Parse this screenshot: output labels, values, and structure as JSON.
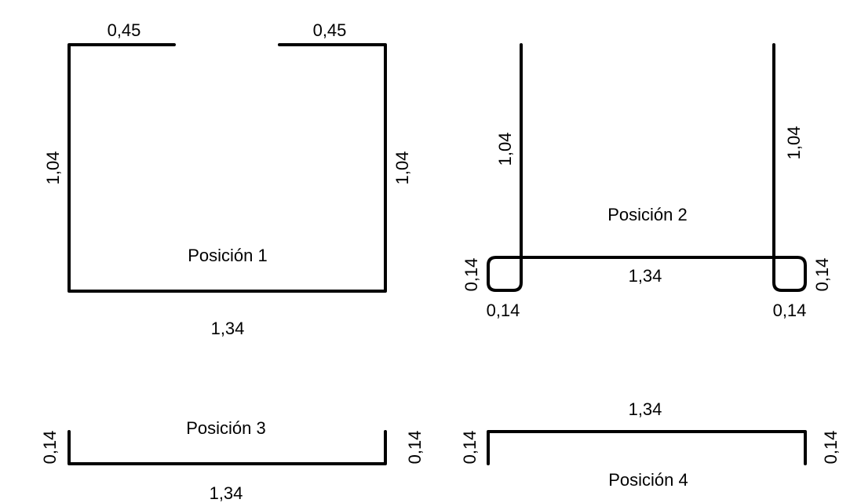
{
  "diagram": {
    "line_color": "#000000",
    "background_color": "#ffffff",
    "positions": [
      {
        "name": "Posición 1",
        "labels": {
          "top_left": "0,45",
          "top_right": "0,45",
          "left": "1,04",
          "right": "1,04",
          "bottom": "1,34"
        }
      },
      {
        "name": "Posición 2",
        "labels": {
          "left_vertical": "1,04",
          "right_vertical": "1,04",
          "horizontal": "1,34",
          "left_hook_height": "0,14",
          "left_hook_width": "0,14",
          "right_hook_height": "0,14",
          "right_hook_width": "0,14"
        }
      },
      {
        "name": "Posición 3",
        "labels": {
          "left": "0,14",
          "right": "0,14",
          "bottom": "1,34"
        }
      },
      {
        "name": "Posición 4",
        "labels": {
          "top": "1,34",
          "left": "0,14",
          "right": "0,14"
        }
      }
    ]
  }
}
